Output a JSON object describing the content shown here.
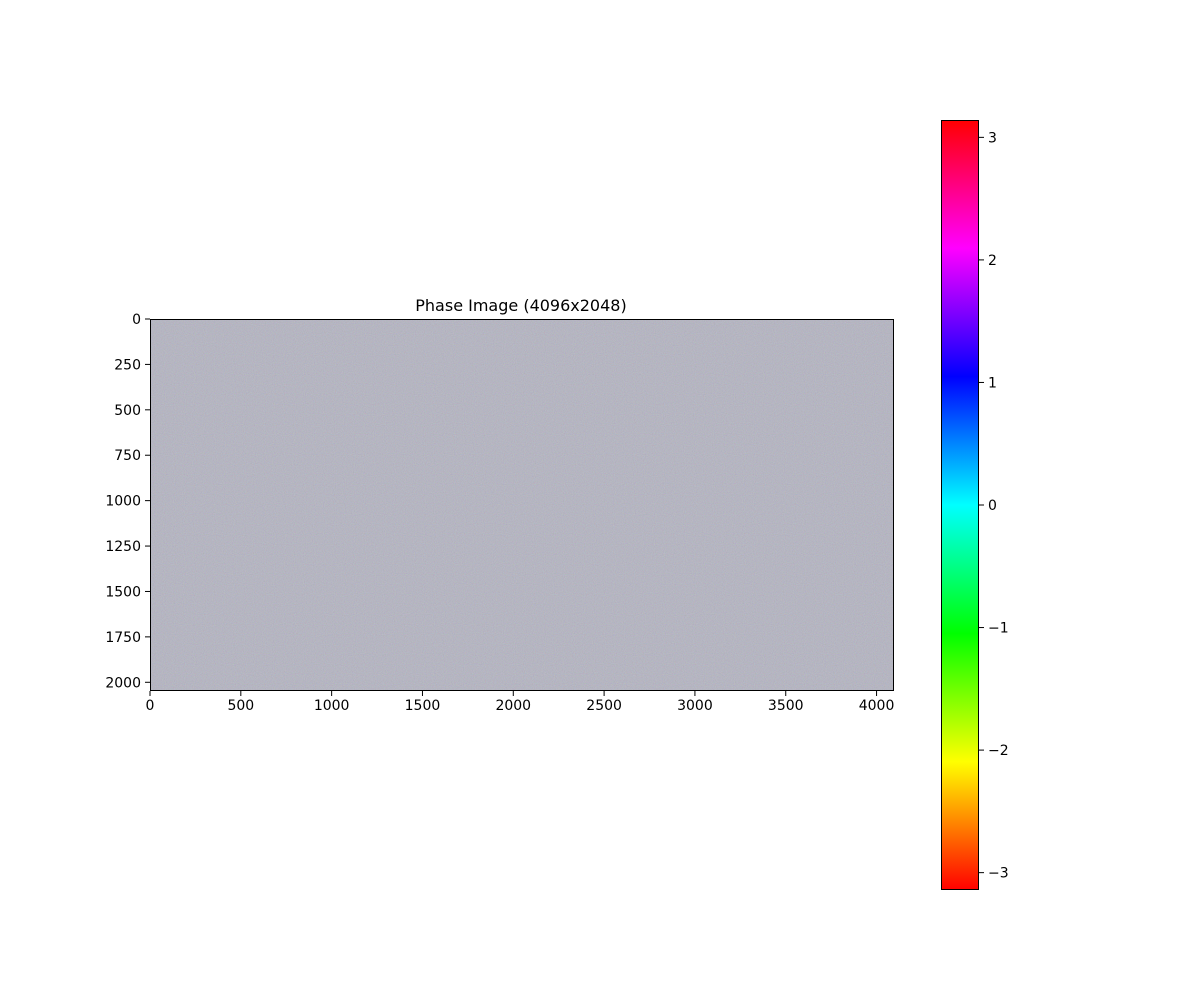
{
  "chart_data": {
    "type": "heatmap",
    "title": "Phase Image (4096x2048)",
    "xlabel": "",
    "ylabel": "",
    "image_width": 4096,
    "image_height": 2048,
    "xlim": [
      0,
      4096
    ],
    "ylim": [
      2048,
      0
    ],
    "x_ticks": [
      0,
      500,
      1000,
      1500,
      2000,
      2500,
      3000,
      3500,
      4000
    ],
    "x_tick_labels": [
      "0",
      "500",
      "1000",
      "1500",
      "2000",
      "2500",
      "3000",
      "3500",
      "4000"
    ],
    "y_ticks": [
      0,
      250,
      500,
      750,
      1000,
      1250,
      1500,
      1750,
      2000
    ],
    "y_tick_labels": [
      "0",
      "250",
      "500",
      "750",
      "1000",
      "1250",
      "1500",
      "1750",
      "2000"
    ],
    "image_appearance": "fine random noise, mean color gray",
    "image_mean_color": "#7e7f8e",
    "colorbar": {
      "colormap": "hsv",
      "range": [
        -3.1416,
        3.1416
      ],
      "ticks": [
        -3,
        -2,
        -1,
        0,
        1,
        2,
        3
      ],
      "tick_labels": [
        "−3",
        "−2",
        "−1",
        "0",
        "1",
        "2",
        "3"
      ],
      "gradient_stops_bottom_to_top": [
        "#ff0000",
        "#ffff00",
        "#00ff00",
        "#00ffff",
        "#0000ff",
        "#ff00ff",
        "#ff0000"
      ]
    },
    "grid": false
  }
}
